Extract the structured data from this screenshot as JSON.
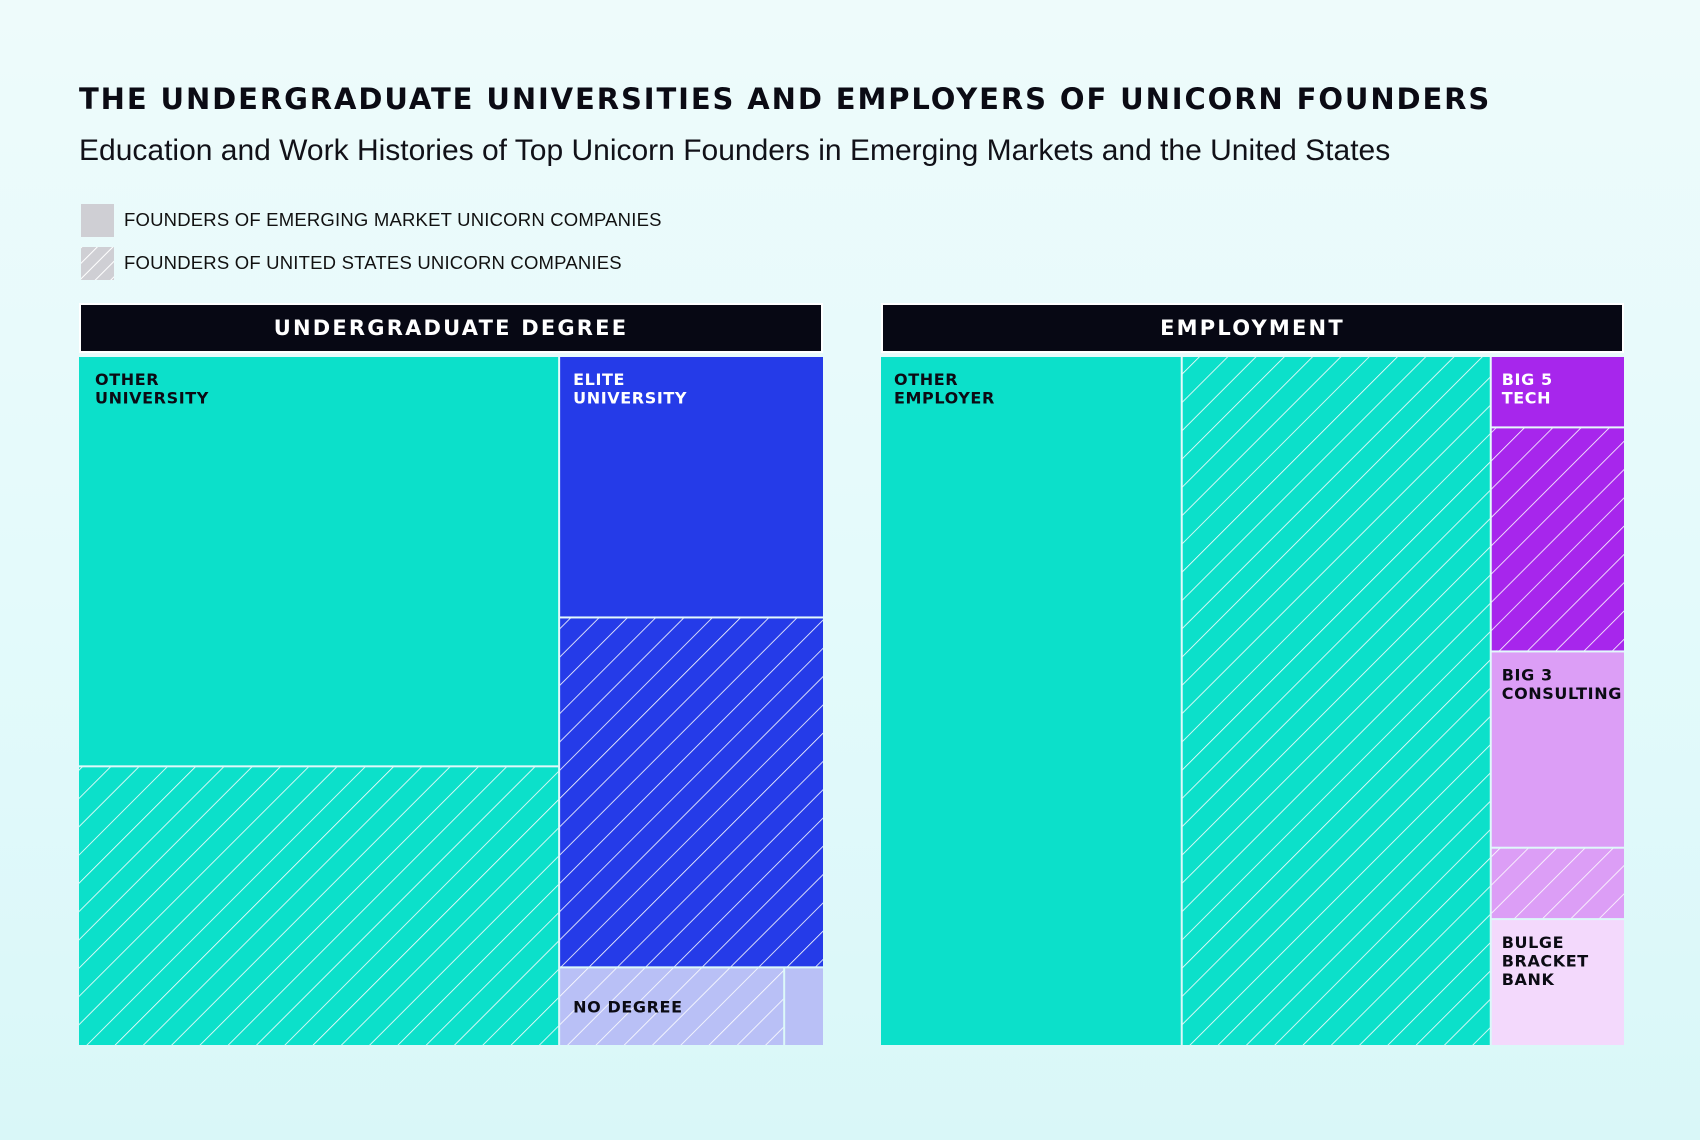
{
  "header": {
    "title": "THE UNDERGRADUATE UNIVERSITIES AND EMPLOYERS OF UNICORN FOUNDERS",
    "subtitle": "Education and Work Histories of Top Unicorn Founders in Emerging Markets and the United States"
  },
  "legend": [
    {
      "label": "FOUNDERS OF EMERGING MARKET UNICORN COMPANIES",
      "pattern": "solid",
      "swatch_color": "#cfcfd4"
    },
    {
      "label": "FOUNDERS OF UNITED STATES UNICORN COMPANIES",
      "pattern": "hatched",
      "swatch_color": "#cfcfd4"
    }
  ],
  "chart_data": [
    {
      "type": "treemap",
      "panel_title": "UNDERGRADUATE DEGREE",
      "units": "share of founders (estimated from area)",
      "categories": [
        {
          "name": "OTHER UNIVERSITY",
          "label_lines": [
            "OTHER",
            "UNIVERSITY"
          ],
          "color": "#0ce0ca",
          "label_color": "#0b0b14",
          "emerging_market": 0.5,
          "united_states": 0.34
        },
        {
          "name": "ELITE UNIVERSITY",
          "label_lines": [
            "ELITE",
            "UNIVERSITY"
          ],
          "color": "#253be8",
          "label_color": "#ffffff",
          "emerging_market": 0.44,
          "united_states": 0.59
        },
        {
          "name": "NO DEGREE",
          "label_lines": [
            "NO DEGREE"
          ],
          "color": "#b9c0f6",
          "label_color": "#0b0b14",
          "emerging_market": 0.06,
          "united_states": 0.07
        }
      ]
    },
    {
      "type": "treemap",
      "panel_title": "EMPLOYMENT",
      "units": "share of founders (estimated from area)",
      "categories": [
        {
          "name": "OTHER EMPLOYER",
          "label_lines": [
            "OTHER",
            "EMPLOYER"
          ],
          "color": "#0ce0ca",
          "label_color": "#0b0b14",
          "emerging_market": 0.67,
          "united_states": 0.69
        },
        {
          "name": "BIG 5 TECH",
          "label_lines": [
            "BIG 5",
            "TECH"
          ],
          "color": "#a726ec",
          "label_color": "#ffffff",
          "emerging_market": 0.1,
          "united_states": 0.32
        },
        {
          "name": "BIG 3 CONSULTING",
          "label_lines": [
            "BIG 3",
            "CONSULTING"
          ],
          "color": "#dc9ef6",
          "label_color": "#0b0b14",
          "emerging_market": 0.28,
          "united_states": 0.1
        },
        {
          "name": "BULGE BRACKET BANK",
          "label_lines": [
            "BULGE",
            "BRACKET",
            "BANK"
          ],
          "color": "#f3d9fc",
          "label_color": "#0b0b14",
          "emerging_market": 0.18,
          "united_states": 0.0
        }
      ]
    }
  ]
}
